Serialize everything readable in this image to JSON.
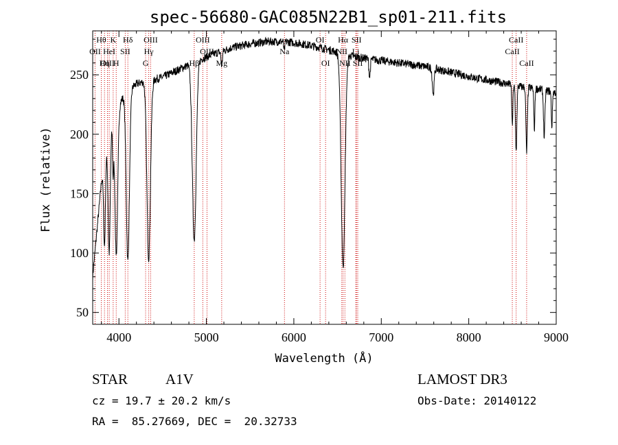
{
  "chart_data": {
    "type": "line",
    "title": "spec-56680-GAC085N22B1_sp01-211.fits",
    "xlabel": "Wavelength (Å)",
    "ylabel": "Flux (relative)",
    "xlim": [
      3700,
      9000
    ],
    "ylim": [
      40,
      287
    ],
    "x_ticks": [
      4000,
      5000,
      6000,
      7000,
      8000,
      9000
    ],
    "y_ticks": [
      50,
      100,
      150,
      200,
      250
    ],
    "continuum": {
      "x": [
        3700,
        3800,
        3900,
        4000,
        4100,
        4200,
        4300,
        4400,
        4500,
        4700,
        4900,
        5100,
        5300,
        5500,
        5700,
        5900,
        6100,
        6300,
        6500,
        6700,
        6900,
        7200,
        7500,
        7800,
        8100,
        8400,
        8600,
        8800,
        9000
      ],
      "y": [
        80,
        160,
        205,
        225,
        238,
        242,
        245,
        246,
        248,
        255,
        262,
        268,
        273,
        276,
        278,
        278,
        276,
        273,
        269,
        265,
        263,
        260,
        257,
        252,
        247,
        243,
        240,
        238,
        235
      ]
    },
    "absorption": [
      {
        "center": 3835,
        "depth": 70,
        "width": 10
      },
      {
        "center": 3889,
        "depth": 100,
        "width": 12
      },
      {
        "center": 3933,
        "depth": 40,
        "width": 6
      },
      {
        "center": 3970,
        "depth": 120,
        "width": 16
      },
      {
        "center": 4102,
        "depth": 145,
        "width": 18
      },
      {
        "center": 4340,
        "depth": 150,
        "width": 20
      },
      {
        "center": 4861,
        "depth": 150,
        "width": 22
      },
      {
        "center": 5175,
        "depth": 12,
        "width": 8
      },
      {
        "center": 5890,
        "depth": 8,
        "width": 6
      },
      {
        "center": 6563,
        "depth": 180,
        "width": 22
      },
      {
        "center": 6867,
        "depth": 15,
        "width": 8
      },
      {
        "center": 7594,
        "depth": 22,
        "width": 10
      },
      {
        "center": 8498,
        "depth": 35,
        "width": 6
      },
      {
        "center": 8542,
        "depth": 55,
        "width": 8
      },
      {
        "center": 8662,
        "depth": 55,
        "width": 8
      },
      {
        "center": 8750,
        "depth": 35,
        "width": 6
      },
      {
        "center": 8863,
        "depth": 40,
        "width": 8
      },
      {
        "center": 8950,
        "depth": 30,
        "width": 6
      }
    ],
    "lines": [
      {
        "name": "Hθ",
        "wave": 3798,
        "row": 0
      },
      {
        "name": "K",
        "wave": 3934,
        "row": 0
      },
      {
        "name": "Hδ",
        "wave": 4102,
        "row": 0
      },
      {
        "name": "OII",
        "wave": 3727,
        "row": 1
      },
      {
        "name": "HeI",
        "wave": 3889,
        "row": 1
      },
      {
        "name": "SII",
        "wave": 4072,
        "row": 1
      },
      {
        "name": "OIII",
        "wave": 3869,
        "row": 2
      },
      {
        "name": "Hη",
        "wave": 3835,
        "row": 2
      },
      {
        "name": "H",
        "wave": 3969,
        "row": 2
      },
      {
        "name": "OIII",
        "wave": 4363,
        "row": 0
      },
      {
        "name": "Hγ",
        "wave": 4341,
        "row": 1
      },
      {
        "name": "G",
        "wave": 4305,
        "row": 2
      },
      {
        "name": "OIII",
        "wave": 4959,
        "row": 0
      },
      {
        "name": "OIII",
        "wave": 5007,
        "row": 1
      },
      {
        "name": "Hβ",
        "wave": 4861,
        "row": 2
      },
      {
        "name": "Mg",
        "wave": 5175,
        "row": 2
      },
      {
        "name": "Na",
        "wave": 5893,
        "row": 1
      },
      {
        "name": "OI",
        "wave": 6300,
        "row": 0
      },
      {
        "name": "OI",
        "wave": 6363,
        "row": 2
      },
      {
        "name": "Hα",
        "wave": 6563,
        "row": 0
      },
      {
        "name": "SII",
        "wave": 6717,
        "row": 0
      },
      {
        "name": "NII",
        "wave": 6548,
        "row": 1
      },
      {
        "name": "Li",
        "wave": 6708,
        "row": 1
      },
      {
        "name": "NII",
        "wave": 6584,
        "row": 2
      },
      {
        "name": "SII",
        "wave": 6731,
        "row": 2
      },
      {
        "name": "CaII",
        "wave": 8542,
        "row": 0
      },
      {
        "name": "CaII",
        "wave": 8498,
        "row": 1
      },
      {
        "name": "CaII",
        "wave": 8662,
        "row": 2
      }
    ]
  },
  "info": {
    "class": "STAR",
    "subclass": "A1V",
    "survey": "LAMOST DR3",
    "cz": "cz = 19.7 ± 20.2 km/s",
    "obs_date": "Obs-Date: 20140122",
    "radec": "RA =  85.27669, DEC =  20.32733"
  },
  "colors": {
    "spectrum": "#000000",
    "line_marker": "#cc0000",
    "axes": "#000000"
  }
}
